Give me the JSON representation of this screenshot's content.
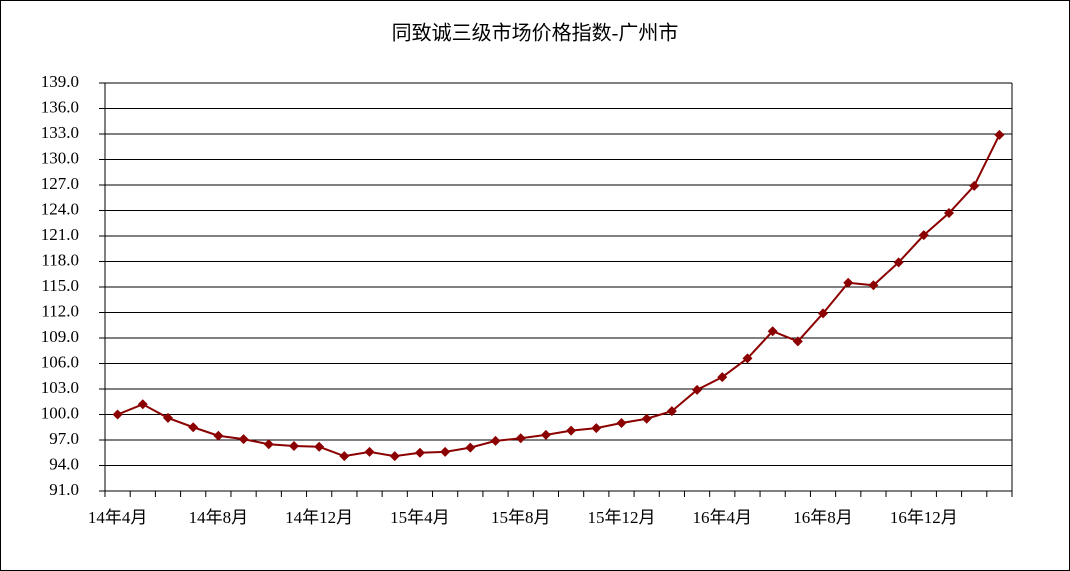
{
  "chart_data": {
    "type": "line",
    "title": "同致诚三级市场价格指数-广州市",
    "categories": [
      "14年4月",
      null,
      null,
      null,
      "14年8月",
      null,
      null,
      null,
      "14年12月",
      null,
      null,
      null,
      "15年4月",
      null,
      null,
      null,
      "15年8月",
      null,
      null,
      null,
      "15年12月",
      null,
      null,
      null,
      "16年4月",
      null,
      null,
      null,
      "16年8月",
      null,
      null,
      null,
      "16年12月",
      null,
      null,
      null
    ],
    "series": [
      {
        "name": "广州市",
        "color": "#8b0000",
        "values": [
          100.0,
          101.2,
          99.6,
          98.5,
          97.5,
          97.1,
          96.5,
          96.3,
          96.2,
          95.1,
          95.6,
          95.1,
          95.5,
          95.6,
          96.1,
          96.9,
          97.2,
          97.6,
          98.1,
          98.4,
          99.0,
          99.5,
          100.4,
          102.9,
          104.4,
          106.6,
          109.8,
          108.6,
          111.9,
          115.5,
          115.2,
          117.9,
          121.1,
          123.7,
          126.9,
          132.9
        ]
      }
    ],
    "ylim": [
      91,
      139
    ],
    "yticks": [
      {
        "value": 91,
        "label": "91.0"
      },
      {
        "value": 94,
        "label": "94.0"
      },
      {
        "value": 97,
        "label": "97.0"
      },
      {
        "value": 100,
        "label": "100.0"
      },
      {
        "value": 103,
        "label": "103.0"
      },
      {
        "value": 106,
        "label": "106.0"
      },
      {
        "value": 109,
        "label": "109.0"
      },
      {
        "value": 112,
        "label": "112.0"
      },
      {
        "value": 115,
        "label": "115.0"
      },
      {
        "value": 118,
        "label": "118.0"
      },
      {
        "value": 121,
        "label": "121.0"
      },
      {
        "value": 124,
        "label": "124.0"
      },
      {
        "value": 127,
        "label": "127.0"
      },
      {
        "value": 130,
        "label": "130.0"
      },
      {
        "value": 133,
        "label": "133.0"
      },
      {
        "value": 136,
        "label": "136.0"
      },
      {
        "value": 139,
        "label": "139.0"
      }
    ],
    "grid": true
  }
}
